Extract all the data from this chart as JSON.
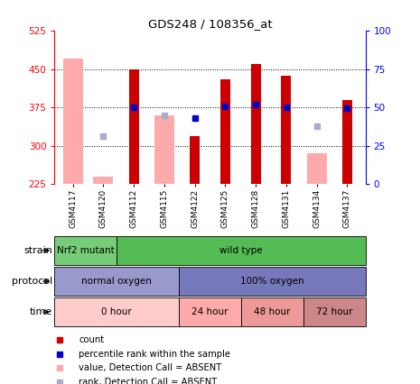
{
  "title": "GDS248 / 108356_at",
  "samples": [
    "GSM4117",
    "GSM4120",
    "GSM4112",
    "GSM4115",
    "GSM4122",
    "GSM4125",
    "GSM4128",
    "GSM4131",
    "GSM4134",
    "GSM4137"
  ],
  "ylim_left": [
    225,
    525
  ],
  "ylim_right": [
    0,
    100
  ],
  "yticks_left": [
    225,
    300,
    375,
    450,
    525
  ],
  "yticks_right": [
    0,
    25,
    50,
    75,
    100
  ],
  "red_bars": [
    null,
    null,
    450,
    null,
    320,
    430,
    460,
    437,
    null,
    390
  ],
  "pink_bars": [
    470,
    240,
    null,
    360,
    null,
    null,
    null,
    null,
    285,
    null
  ],
  "blue_dots": [
    null,
    null,
    375,
    null,
    355,
    378,
    380,
    376,
    null,
    373
  ],
  "lavender_dots": [
    null,
    320,
    null,
    360,
    null,
    null,
    null,
    null,
    338,
    null
  ],
  "strain_groups": [
    {
      "label": "Nrf2 mutant",
      "start": 0,
      "end": 2,
      "color": "#77cc77"
    },
    {
      "label": "wild type",
      "start": 2,
      "end": 10,
      "color": "#55bb55"
    }
  ],
  "protocol_groups": [
    {
      "label": "normal oxygen",
      "start": 0,
      "end": 4,
      "color": "#9999cc"
    },
    {
      "label": "100% oxygen",
      "start": 4,
      "end": 10,
      "color": "#7777bb"
    }
  ],
  "time_groups": [
    {
      "label": "0 hour",
      "start": 0,
      "end": 4,
      "color": "#ffcccc"
    },
    {
      "label": "24 hour",
      "start": 4,
      "end": 6,
      "color": "#ffaaaa"
    },
    {
      "label": "48 hour",
      "start": 6,
      "end": 8,
      "color": "#ee9999"
    },
    {
      "label": "72 hour",
      "start": 8,
      "end": 10,
      "color": "#cc8888"
    }
  ],
  "red_color": "#cc0000",
  "pink_color": "#ffaaaa",
  "blue_color": "#0000cc",
  "lavender_color": "#aaaacc",
  "grid_yticks": [
    300,
    375,
    450
  ]
}
